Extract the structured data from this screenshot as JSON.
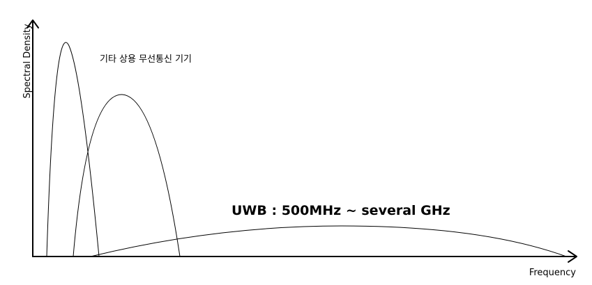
{
  "axes": {
    "x_label": "Frequency",
    "y_label": "Spectral Density"
  },
  "annotations": {
    "other_devices": "기타 상용 무선통신 기기",
    "uwb": "UWB : 500MHz ~ several GHz"
  },
  "colors": {
    "line": "#000000",
    "background": "#ffffff"
  }
}
